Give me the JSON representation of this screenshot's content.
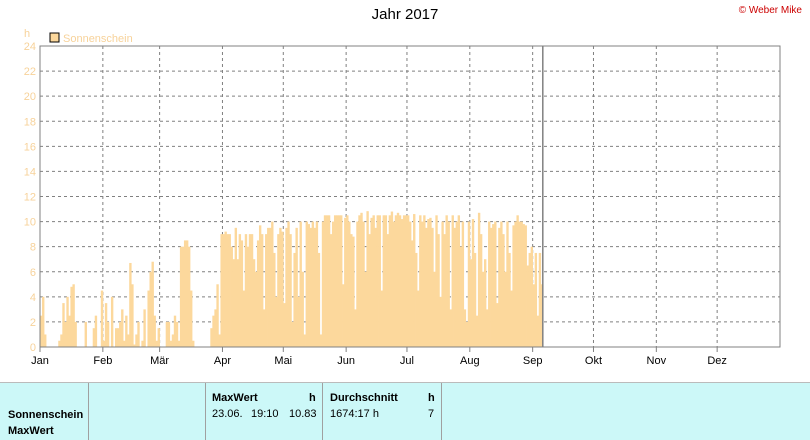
{
  "header": {
    "title": "Jahr 2017",
    "copyright": "© Weber Mike"
  },
  "colors": {
    "bar": "#fcd89c",
    "axis_text": "#000000",
    "legend_text": "#f7d29a",
    "stats_bg": "#ccf8f8"
  },
  "chart_data": {
    "type": "bar",
    "title": "Jahr 2017",
    "ylabel": "h",
    "ylim": [
      0,
      24
    ],
    "yticks": [
      "0",
      "2",
      "4",
      "6",
      "8",
      "10",
      "12",
      "14",
      "16",
      "18",
      "20",
      "22",
      "24"
    ],
    "xlim_days": [
      0,
      365
    ],
    "months": [
      "Jan",
      "Feb",
      "Mär",
      "Apr",
      "Mai",
      "Jun",
      "Jul",
      "Aug",
      "Sep",
      "Okt",
      "Nov",
      "Dez"
    ],
    "month_start_day": [
      0,
      31,
      59,
      90,
      120,
      151,
      181,
      212,
      243,
      273,
      304,
      334
    ],
    "marker_day": 248,
    "grid": true,
    "legend": {
      "placement": "top-left",
      "entries": [
        "Sonnenschein"
      ]
    },
    "series": [
      {
        "name": "Sonnenschein",
        "values": [
          2.5,
          4,
          1,
          0,
          0,
          0,
          0,
          0,
          0,
          0.5,
          1,
          3.5,
          2,
          4,
          2.5,
          4.8,
          5,
          2,
          0,
          0,
          0,
          0,
          2,
          0,
          0,
          0,
          1.5,
          2.5,
          0,
          0,
          4.5,
          0.5,
          3.5,
          2,
          0,
          4,
          0,
          1.5,
          1.5,
          2,
          3,
          0.5,
          2.5,
          1,
          6.7,
          5,
          0.2,
          1,
          2,
          0,
          0.5,
          3,
          0,
          4.5,
          6,
          6.8,
          2.5,
          0.5,
          1.5,
          0,
          0,
          0,
          2,
          2,
          0.5,
          1,
          2.5,
          2,
          0.5,
          8,
          8,
          8.5,
          8.5,
          8,
          4.5,
          0.5,
          0,
          0,
          0,
          0,
          0,
          0,
          0,
          0,
          1.5,
          2.5,
          3,
          5,
          1,
          9,
          9,
          9.2,
          9,
          9,
          8,
          7,
          9.5,
          7,
          9,
          8.5,
          4.5,
          9,
          8,
          9,
          9,
          7,
          6,
          8.5,
          9.7,
          9,
          3,
          9,
          9.5,
          9.5,
          10,
          7.5,
          4,
          9,
          9.5,
          9.2,
          3.5,
          9.5,
          10,
          9,
          2,
          7.5,
          9.5,
          4,
          10,
          6,
          1,
          10,
          9.8,
          9.5,
          10,
          9.5,
          10,
          7.5,
          1,
          10,
          10.5,
          10.5,
          10.5,
          9,
          10,
          10.5,
          10.5,
          10.5,
          10.5,
          5,
          10.3,
          10.5,
          10,
          9,
          8.8,
          3,
          10,
          10.5,
          10.7,
          10,
          6,
          10.83,
          9,
          10.3,
          10.5,
          9.5,
          10.5,
          10.5,
          4.5,
          10.5,
          10.5,
          9,
          10.5,
          10.8,
          10,
          10.5,
          10.7,
          10.5,
          10.2,
          10.5,
          10.5,
          10.5,
          10,
          8.5,
          10.6,
          7.5,
          4.5,
          10.5,
          10,
          10.5,
          9.5,
          10.2,
          10.3,
          9.5,
          6,
          10.5,
          9,
          4,
          10,
          9,
          10.5,
          10,
          3,
          10.5,
          9.5,
          10,
          10.5,
          8,
          10,
          3,
          2,
          10,
          7,
          10.2,
          7.5,
          2.5,
          10.7,
          9,
          6,
          7,
          3,
          10,
          9.5,
          9.8,
          10,
          3.5,
          9.5,
          10,
          9,
          6,
          10,
          7.5,
          4.5,
          9.7,
          10,
          10.5,
          10,
          10,
          9.8,
          9.7,
          6.5,
          7.5,
          8,
          5,
          7.5,
          2.5,
          7.5,
          5
        ]
      }
    ]
  },
  "table": {
    "row_labels": [
      "Sonnenschein",
      "MaxWert"
    ],
    "maxwert_header": "MaxWert",
    "maxwert_unit": "h",
    "maxwert_date": "23.06.",
    "maxwert_time": "19:10",
    "maxwert_value": "10.83",
    "avg_header": "Durchschnitt",
    "avg_unit": "h",
    "avg_total": "1674:17 h",
    "avg_value": "7"
  }
}
